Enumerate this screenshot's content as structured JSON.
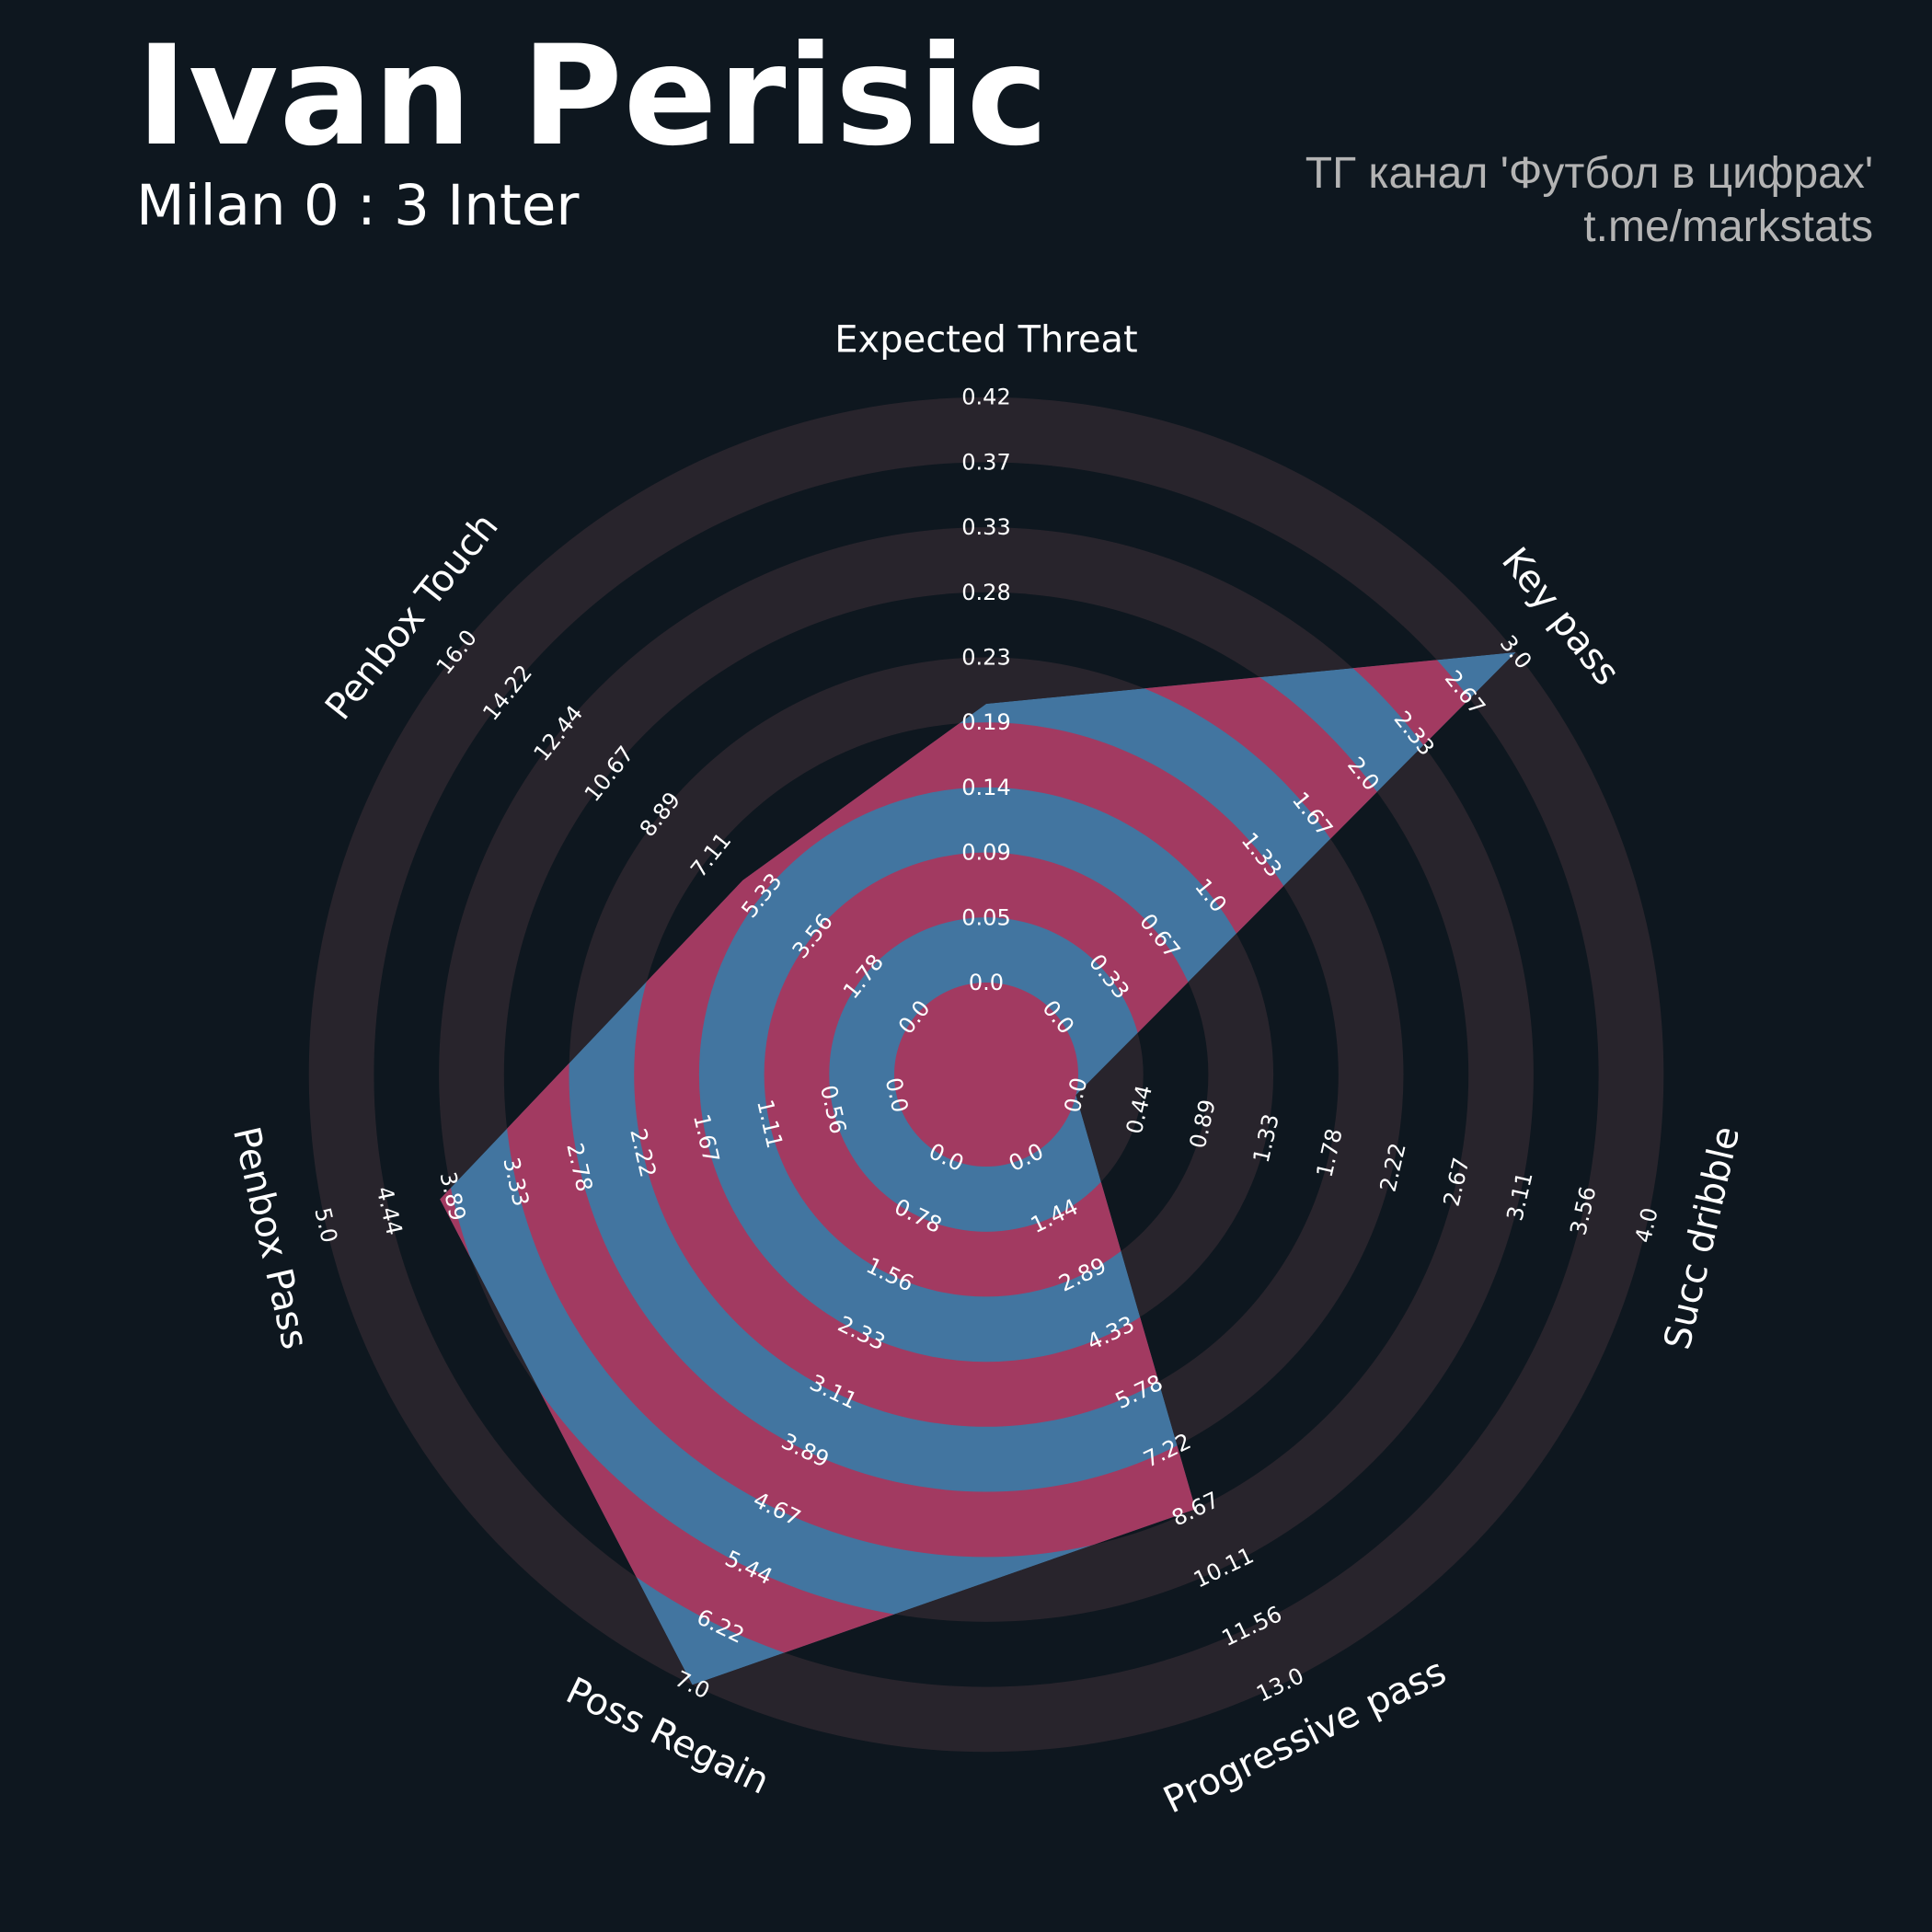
{
  "header": {
    "player": "Ivan Perisic",
    "match": "Milan 0 : 3 Inter",
    "credit_line1": "ТГ канал 'Футбол в цифрах'",
    "credit_line2": "t.me/markstats"
  },
  "colors": {
    "background": "#0e171f",
    "ring_dark": "#28242c",
    "ring_light": "#0e171f",
    "player_fill": "#4275a0",
    "player_stripe": "#a23a61"
  },
  "chart_data": {
    "type": "radar",
    "title": "Ivan Perisic",
    "axes": [
      {
        "name": "Expected Threat",
        "min": 0.0,
        "max": 0.42,
        "ticks": [
          "0.0",
          "0.05",
          "0.09",
          "0.14",
          "0.19",
          "0.23",
          "0.28",
          "0.33",
          "0.37",
          "0.42"
        ]
      },
      {
        "name": "Key pass",
        "min": 0.0,
        "max": 3.0,
        "ticks": [
          "0.0",
          "0.33",
          "0.67",
          "1.0",
          "1.33",
          "1.67",
          "2.0",
          "2.33",
          "2.67",
          "3.0"
        ]
      },
      {
        "name": "Succ dribble",
        "min": 0.0,
        "max": 4.0,
        "ticks": [
          "0.0",
          "0.44",
          "0.89",
          "1.33",
          "1.78",
          "2.22",
          "2.67",
          "3.11",
          "3.56",
          "4.0"
        ]
      },
      {
        "name": "Progressive pass",
        "min": 0.0,
        "max": 13.0,
        "ticks": [
          "0.0",
          "1.44",
          "2.89",
          "4.33",
          "5.78",
          "7.22",
          "8.67",
          "10.11",
          "11.56",
          "13.0"
        ]
      },
      {
        "name": "Poss Regain",
        "min": 0.0,
        "max": 7.0,
        "ticks": [
          "0.0",
          "0.78",
          "1.56",
          "2.33",
          "3.11",
          "3.89",
          "4.67",
          "5.44",
          "6.22",
          "7.0"
        ]
      },
      {
        "name": "Penbox Pass",
        "min": 0.0,
        "max": 5.0,
        "ticks": [
          "0.0",
          "0.56",
          "1.11",
          "1.67",
          "2.22",
          "2.78",
          "3.33",
          "3.89",
          "4.44",
          "5.0"
        ]
      },
      {
        "name": "Penbox Touch",
        "min": 0.0,
        "max": 16.0,
        "ticks": [
          "0.0",
          "1.78",
          "3.56",
          "5.33",
          "7.11",
          "8.89",
          "10.67",
          "12.44",
          "14.22",
          "16.0"
        ]
      }
    ],
    "series": [
      {
        "values": [
          0.2,
          3.0,
          0.0,
          8.67,
          7.0,
          4.0,
          6.0
        ]
      }
    ]
  }
}
